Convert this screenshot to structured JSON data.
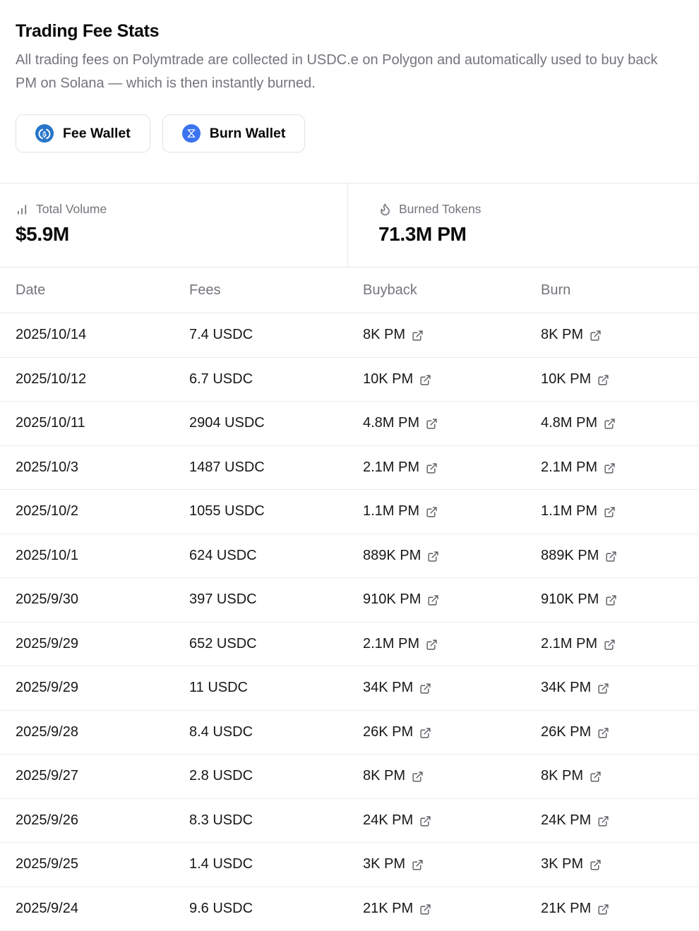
{
  "header": {
    "title": "Trading Fee Stats",
    "description": "All trading fees on Polymtrade are collected in USDC.e on Polygon and automatically used to buy back PM on Solana — which is then instantly burned.",
    "buttons": [
      {
        "label": "Fee Wallet",
        "icon": "usdc-coin-icon",
        "icon_color": "#2775CA"
      },
      {
        "label": "Burn Wallet",
        "icon": "bowtie-token-icon",
        "icon_color": "#3B74F0"
      }
    ]
  },
  "stats": [
    {
      "icon": "bar-chart-icon",
      "label": "Total Volume",
      "value": "$5.9M"
    },
    {
      "icon": "flame-icon",
      "label": "Burned Tokens",
      "value": "71.3M PM"
    }
  ],
  "table": {
    "columns": [
      "Date",
      "Fees",
      "Buyback",
      "Burn"
    ],
    "link_icon": "external-link-icon",
    "rows": [
      {
        "date": "2025/10/14",
        "fees": "7.4 USDC",
        "buyback": "8K PM",
        "burn": "8K PM"
      },
      {
        "date": "2025/10/12",
        "fees": "6.7 USDC",
        "buyback": "10K PM",
        "burn": "10K PM"
      },
      {
        "date": "2025/10/11",
        "fees": "2904 USDC",
        "buyback": "4.8M PM",
        "burn": "4.8M PM"
      },
      {
        "date": "2025/10/3",
        "fees": "1487 USDC",
        "buyback": "2.1M PM",
        "burn": "2.1M PM"
      },
      {
        "date": "2025/10/2",
        "fees": "1055 USDC",
        "buyback": "1.1M PM",
        "burn": "1.1M PM"
      },
      {
        "date": "2025/10/1",
        "fees": "624 USDC",
        "buyback": "889K PM",
        "burn": "889K PM"
      },
      {
        "date": "2025/9/30",
        "fees": "397 USDC",
        "buyback": "910K PM",
        "burn": "910K PM"
      },
      {
        "date": "2025/9/29",
        "fees": "652 USDC",
        "buyback": "2.1M PM",
        "burn": "2.1M PM"
      },
      {
        "date": "2025/9/29",
        "fees": "11 USDC",
        "buyback": "34K PM",
        "burn": "34K PM"
      },
      {
        "date": "2025/9/28",
        "fees": "8.4 USDC",
        "buyback": "26K PM",
        "burn": "26K PM"
      },
      {
        "date": "2025/9/27",
        "fees": "2.8 USDC",
        "buyback": "8K PM",
        "burn": "8K PM"
      },
      {
        "date": "2025/9/26",
        "fees": "8.3 USDC",
        "buyback": "24K PM",
        "burn": "24K PM"
      },
      {
        "date": "2025/9/25",
        "fees": "1.4 USDC",
        "buyback": "3K PM",
        "burn": "3K PM"
      },
      {
        "date": "2025/9/24",
        "fees": "9.6 USDC",
        "buyback": "21K PM",
        "burn": "21K PM"
      }
    ]
  }
}
